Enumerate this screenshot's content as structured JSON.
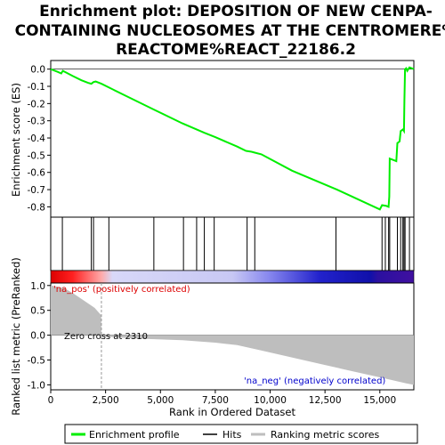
{
  "chart_data": {
    "type": "line",
    "title_lines": [
      "Enrichment plot: DEPOSITION OF NEW CENPA-",
      "CONTAINING NUCLEOSOMES AT THE CENTROMERE%",
      "REACTOME%REACT_22186.2"
    ],
    "top_panel": {
      "ylabel": "Enrichment score (ES)",
      "ylim": [
        -0.86,
        0.05
      ],
      "yticks": [
        0.0,
        -0.1,
        -0.2,
        -0.3,
        -0.4,
        -0.5,
        -0.6,
        -0.7,
        -0.8
      ],
      "ytick_labels": [
        "0.0",
        "-0.1",
        "-0.2",
        "-0.3",
        "-0.4",
        "-0.5",
        "-0.6",
        "-0.7",
        "-0.8"
      ],
      "series_name": "Enrichment profile",
      "color": "#00ee00",
      "profile": [
        [
          0,
          0.0
        ],
        [
          300,
          -0.015
        ],
        [
          480,
          -0.025
        ],
        [
          550,
          -0.01
        ],
        [
          700,
          -0.02
        ],
        [
          1000,
          -0.04
        ],
        [
          1400,
          -0.065
        ],
        [
          1700,
          -0.08
        ],
        [
          1850,
          -0.085
        ],
        [
          1950,
          -0.075
        ],
        [
          2050,
          -0.072
        ],
        [
          2310,
          -0.085
        ],
        [
          2700,
          -0.11
        ],
        [
          3500,
          -0.16
        ],
        [
          4700,
          -0.235
        ],
        [
          6000,
          -0.315
        ],
        [
          7000,
          -0.37
        ],
        [
          7500,
          -0.395
        ],
        [
          8500,
          -0.45
        ],
        [
          8900,
          -0.475
        ],
        [
          9150,
          -0.48
        ],
        [
          9300,
          -0.485
        ],
        [
          9600,
          -0.495
        ],
        [
          11000,
          -0.59
        ],
        [
          12950,
          -0.695
        ],
        [
          13050,
          -0.7
        ],
        [
          15000,
          -0.815
        ],
        [
          15100,
          -0.79
        ],
        [
          15300,
          -0.795
        ],
        [
          15400,
          -0.8
        ],
        [
          15430,
          -0.74
        ],
        [
          15450,
          -0.52
        ],
        [
          15750,
          -0.535
        ],
        [
          15800,
          -0.43
        ],
        [
          15900,
          -0.42
        ],
        [
          15950,
          -0.36
        ],
        [
          16050,
          -0.35
        ],
        [
          16100,
          -0.36
        ],
        [
          16120,
          -0.18
        ],
        [
          16150,
          0.0
        ],
        [
          16200,
          0.005
        ],
        [
          16250,
          -0.01
        ],
        [
          16350,
          0.01
        ],
        [
          16550,
          0.0
        ]
      ]
    },
    "hits": [
      530,
      1850,
      1950,
      2650,
      4700,
      6050,
      6650,
      7000,
      7450,
      8950,
      9300,
      13000,
      15100,
      15250,
      15400,
      15450,
      15800,
      15950,
      16050,
      16100,
      16150,
      16350
    ],
    "ranking_panel": {
      "ylabel": "Ranked list metric (PreRanked)",
      "ylim": [
        -1.1,
        1.05
      ],
      "yticks": [
        1.0,
        0.5,
        0.0,
        -0.5,
        -1.0
      ],
      "ytick_labels": [
        "1.0",
        "0.5",
        "0.0",
        "-0.5",
        "-1.0"
      ],
      "series_name": "Ranking metric scores",
      "color": "#bebebe",
      "metric_curve": [
        [
          0,
          1.0
        ],
        [
          600,
          0.95
        ],
        [
          1000,
          0.85
        ],
        [
          1500,
          0.7
        ],
        [
          2000,
          0.55
        ],
        [
          2300,
          0.4
        ],
        [
          2310,
          0.0
        ],
        [
          2500,
          -0.03
        ],
        [
          4000,
          -0.07
        ],
        [
          6000,
          -0.1
        ],
        [
          7500,
          -0.15
        ],
        [
          8500,
          -0.2
        ],
        [
          9500,
          -0.3
        ],
        [
          10500,
          -0.4
        ],
        [
          11500,
          -0.5
        ],
        [
          12500,
          -0.6
        ],
        [
          13500,
          -0.7
        ],
        [
          14500,
          -0.8
        ],
        [
          15500,
          -0.9
        ],
        [
          16200,
          -0.97
        ],
        [
          16550,
          -1.0
        ]
      ],
      "pos_label": "'na_pos' (positively correlated)",
      "neg_label": "'na_neg' (negatively correlated)",
      "zero_cross_label": "Zero cross at 2310",
      "zero_cross": 2310
    },
    "xlabel": "Rank in Ordered Dataset",
    "xlim": [
      0,
      16550
    ],
    "xticks": [
      0,
      2500,
      5000,
      7500,
      10000,
      12500,
      15000
    ],
    "xtick_labels": [
      "0",
      "2,500",
      "5,000",
      "7,500",
      "10,000",
      "12,500",
      "15,000"
    ],
    "legend": {
      "placement": "bottom",
      "entries": [
        {
          "label": "Enrichment profile",
          "color": "#00ee00"
        },
        {
          "label": "Hits",
          "color": "#000000"
        },
        {
          "label": "Ranking metric scores",
          "color": "#bebebe"
        }
      ]
    }
  }
}
